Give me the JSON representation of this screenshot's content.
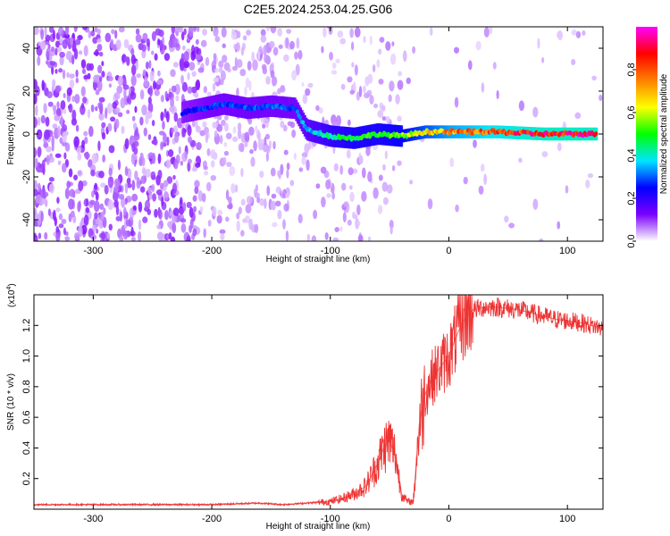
{
  "title": "C2E5.2024.253.04.25.G06",
  "chart_data": [
    {
      "type": "heatmap",
      "xlabel": "Height of straight line (km)",
      "ylabel": "Frequency (Hz)",
      "xlim": [
        -350,
        130
      ],
      "ylim": [
        -50,
        50
      ],
      "xticks": [
        -300,
        -200,
        -100,
        0,
        100
      ],
      "yticks": [
        -40,
        -20,
        0,
        20,
        40
      ],
      "colorbar": {
        "label": "Normalized spectral amplitude",
        "range": [
          0,
          1
        ],
        "ticks": [
          "0.0",
          "0.2",
          "0.4",
          "0.6",
          "0.8"
        ],
        "colors": [
          "#ffffff",
          "#7a00ff",
          "#0000ff",
          "#00e5ff",
          "#00ff00",
          "#ffff00",
          "#ff8000",
          "#ff0000",
          "#ff00ff"
        ]
      },
      "ridge": [
        {
          "x": -225,
          "freq": 10,
          "amp": 0.25
        },
        {
          "x": -190,
          "freq": 14,
          "amp": 0.3
        },
        {
          "x": -170,
          "freq": 12,
          "amp": 0.3
        },
        {
          "x": -150,
          "freq": 13,
          "amp": 0.3
        },
        {
          "x": -130,
          "freq": 12,
          "amp": 0.3
        },
        {
          "x": -120,
          "freq": 2,
          "amp": 0.35
        },
        {
          "x": -100,
          "freq": -1,
          "amp": 0.45
        },
        {
          "x": -80,
          "freq": -2,
          "amp": 0.5
        },
        {
          "x": -60,
          "freq": 0,
          "amp": 0.5
        },
        {
          "x": -40,
          "freq": -1,
          "amp": 0.55
        },
        {
          "x": -20,
          "freq": 1,
          "amp": 0.65
        },
        {
          "x": 0,
          "freq": 1,
          "amp": 0.75
        },
        {
          "x": 40,
          "freq": 1,
          "amp": 0.85
        },
        {
          "x": 80,
          "freq": 0,
          "amp": 0.9
        },
        {
          "x": 125,
          "freq": 0,
          "amp": 0.9
        }
      ]
    },
    {
      "type": "line",
      "xlabel": "Height of straight line (km)",
      "ylabel": "SNR (10 * v/v)",
      "y_multiplier": "(x10",
      "y_multiplier_exp": "4",
      "xlim": [
        -350,
        130
      ],
      "ylim": [
        0,
        1.4
      ],
      "xticks": [
        -300,
        -200,
        -100,
        0,
        100
      ],
      "yticks": [
        "0.2",
        "0.4",
        "0.6",
        "0.8",
        "1.0",
        "1.2"
      ],
      "color": "#ee3333",
      "series": [
        {
          "x": [
            -350,
            -300,
            -250,
            -200,
            -160,
            -140,
            -120,
            -100,
            -90,
            -80,
            -70,
            -60,
            -55,
            -50,
            -45,
            -40,
            -35,
            -30,
            -25,
            -20,
            -15,
            -10,
            -5,
            0,
            5,
            10,
            15,
            20,
            30,
            40,
            50,
            60,
            70,
            80,
            90,
            100,
            110,
            120,
            130
          ],
          "y": [
            0.03,
            0.03,
            0.03,
            0.03,
            0.04,
            0.03,
            0.04,
            0.05,
            0.07,
            0.1,
            0.15,
            0.3,
            0.4,
            0.45,
            0.35,
            0.1,
            0.05,
            0.05,
            0.55,
            0.75,
            0.85,
            0.9,
            0.95,
            1.0,
            1.1,
            1.2,
            1.26,
            1.3,
            1.32,
            1.32,
            1.31,
            1.3,
            1.28,
            1.26,
            1.24,
            1.23,
            1.22,
            1.2,
            1.18
          ]
        }
      ]
    }
  ]
}
